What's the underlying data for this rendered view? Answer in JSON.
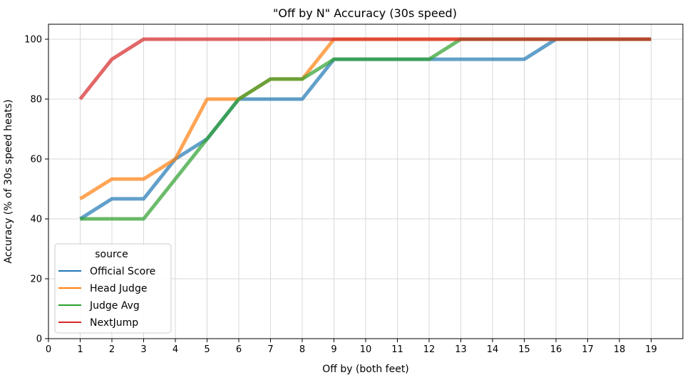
{
  "chart_data": {
    "type": "line",
    "title": "\"Off by N\" Accuracy (30s speed)",
    "xlabel": "Off by (both feet)",
    "ylabel": "Accuracy (% of 30s speed heats)",
    "xlim": [
      0,
      20
    ],
    "ylim": [
      0,
      105
    ],
    "xticks": [
      0,
      1,
      2,
      3,
      4,
      5,
      6,
      7,
      8,
      9,
      10,
      11,
      12,
      13,
      14,
      15,
      16,
      17,
      18,
      19
    ],
    "yticks": [
      0,
      20,
      40,
      60,
      80,
      100
    ],
    "grid": true,
    "legend": {
      "title": "source",
      "placement": "lower-left"
    },
    "x": [
      1,
      2,
      3,
      4,
      5,
      6,
      7,
      8,
      9,
      10,
      11,
      12,
      13,
      14,
      15,
      16,
      17,
      18,
      19
    ],
    "series": [
      {
        "name": "Official Score",
        "color": "#1f77b4",
        "values": [
          40,
          46.7,
          46.7,
          60,
          66.7,
          80,
          80,
          80,
          93.3,
          93.3,
          93.3,
          93.3,
          93.3,
          93.3,
          93.3,
          100,
          100,
          100,
          100
        ]
      },
      {
        "name": "Head Judge",
        "color": "#ff7f0e",
        "values": [
          46.7,
          53.3,
          53.3,
          60,
          80,
          80,
          86.7,
          86.7,
          100,
          100,
          100,
          100,
          100,
          100,
          100,
          100,
          100,
          100,
          100
        ]
      },
      {
        "name": "Judge Avg",
        "color": "#2ca02c",
        "values": [
          40,
          40,
          40,
          53.3,
          66.7,
          80,
          86.7,
          86.7,
          93.3,
          93.3,
          93.3,
          93.3,
          100,
          100,
          100,
          100,
          100,
          100,
          100
        ]
      },
      {
        "name": "NextJump",
        "color": "#d62728",
        "values": [
          80,
          93.3,
          100,
          100,
          100,
          100,
          100,
          100,
          100,
          100,
          100,
          100,
          100,
          100,
          100,
          100,
          100,
          100,
          100
        ]
      }
    ]
  }
}
